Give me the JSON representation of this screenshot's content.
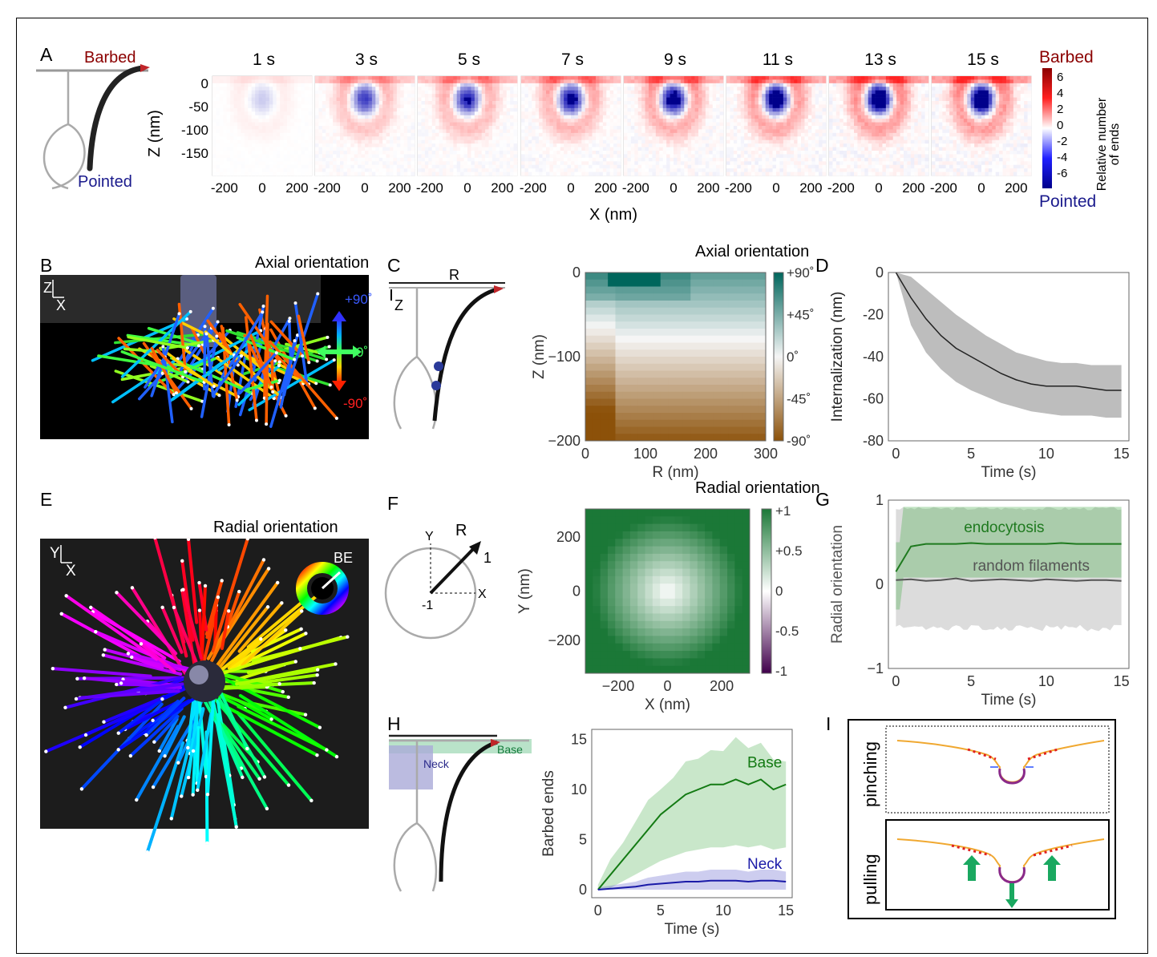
{
  "panel_labels": [
    "A",
    "B",
    "C",
    "D",
    "E",
    "F",
    "G",
    "H",
    "I"
  ],
  "panelA": {
    "schematic": {
      "barbed": "Barbed",
      "pointed": "Pointed"
    },
    "time_labels": [
      "1 s",
      "3 s",
      "5 s",
      "7 s",
      "9 s",
      "11 s",
      "13 s",
      "15 s"
    ],
    "ylabel": "Z (nm)",
    "yticks": [
      "0",
      "-50",
      "-100",
      "-150"
    ],
    "xticks": [
      "-200",
      "0",
      "200"
    ],
    "xlabel": "X (nm)",
    "colorbar": {
      "top": "Barbed",
      "bottom": "Pointed",
      "title": "Relative number of ends",
      "ticks": [
        "6",
        "4",
        "2",
        "0",
        "-2",
        "-4",
        "-6"
      ],
      "colors": {
        "max": "#8b0000",
        "mid": "#ffffff",
        "min": "#00008b"
      }
    }
  },
  "panelB": {
    "title": "Axial orientation",
    "axes": "Z X",
    "legend": [
      "+90˚",
      "0˚",
      "-90˚"
    ]
  },
  "panelC": {
    "schematic": {
      "R": "R",
      "Z": "Z"
    },
    "title": "Axial orientation",
    "xlabel": "R (nm)",
    "ylabel": "Z (nm)",
    "xticks": [
      "0",
      "100",
      "200",
      "300"
    ],
    "yticks": [
      "0",
      "−100",
      "−200"
    ],
    "colorbar_ticks": [
      "+90˚",
      "+45˚",
      "0˚",
      "-45˚",
      "-90˚"
    ],
    "colors": {
      "pos": "#00665c",
      "mid": "#f5f5f5",
      "neg": "#8c5109"
    }
  },
  "panelD": {
    "xlabel": "Time (s)",
    "ylabel": "Internalization (nm)",
    "xticks": [
      "0",
      "5",
      "10",
      "15"
    ],
    "yticks": [
      "0",
      "-20",
      "-40",
      "-60",
      "-80"
    ],
    "chart_data": {
      "type": "line",
      "x": [
        0,
        1,
        2,
        3,
        4,
        5,
        6,
        7,
        8,
        9,
        10,
        11,
        12,
        13,
        14,
        15
      ],
      "series": [
        {
          "values": [
            0,
            -12,
            -22,
            -30,
            -36,
            -40,
            -44,
            -48,
            -51,
            -53,
            -54,
            -54,
            -54,
            -55,
            -56,
            -56
          ]
        }
      ],
      "band_low": [
        0,
        -25,
        -38,
        -46,
        -52,
        -56,
        -59,
        -62,
        -64,
        -66,
        -67,
        -68,
        -68,
        -68,
        -69,
        -69
      ],
      "band_high": [
        0,
        -2,
        -8,
        -14,
        -20,
        -25,
        -30,
        -34,
        -38,
        -40,
        -42,
        -43,
        -43,
        -44,
        -44,
        -44
      ],
      "ylim": [
        -80,
        0
      ],
      "xlim": [
        0,
        15
      ]
    }
  },
  "panelE": {
    "title": "Radial orientation",
    "axes": "Y X",
    "legend": "BE"
  },
  "panelF": {
    "schematic": {
      "Y": "Y",
      "X": "X",
      "R": "R",
      "one": "1",
      "minus_one": "-1"
    },
    "title": "Radial orientation",
    "xlabel": "X (nm)",
    "ylabel": "Y (nm)",
    "xticks": [
      "−200",
      "0",
      "200"
    ],
    "yticks": [
      "200",
      "0",
      "−200"
    ],
    "colorbar_ticks": [
      "+1",
      "+0.5",
      "0",
      "-0.5",
      "-1"
    ],
    "colors": {
      "pos": "#1b7837",
      "mid": "#ffffff",
      "neg": "#40004b"
    }
  },
  "panelG": {
    "xlabel": "Time (s)",
    "ylabel": "Radial orientation",
    "xticks": [
      "0",
      "5",
      "10",
      "15"
    ],
    "yticks": [
      "1",
      "0",
      "−1"
    ],
    "chart_data": {
      "type": "line",
      "x": [
        0,
        1,
        2,
        3,
        4,
        5,
        6,
        7,
        8,
        9,
        10,
        11,
        12,
        13,
        14,
        15
      ],
      "series": [
        {
          "name": "endocytosis",
          "values": [
            0.15,
            0.45,
            0.48,
            0.48,
            0.48,
            0.49,
            0.48,
            0.48,
            0.48,
            0.48,
            0.48,
            0.49,
            0.48,
            0.48,
            0.48,
            0.48
          ]
        },
        {
          "name": "random filaments",
          "values": [
            0.05,
            0.06,
            0.04,
            0.05,
            0.07,
            0.04,
            0.05,
            0.06,
            0.05,
            0.04,
            0.06,
            0.05,
            0.04,
            0.05,
            0.05,
            0.04
          ]
        }
      ],
      "ylim": [
        -1,
        1
      ],
      "xlim": [
        0,
        15
      ]
    }
  },
  "panelH": {
    "schematic": {
      "neck": "Neck",
      "base": "Base"
    },
    "xlabel": "Time (s)",
    "ylabel": "Barbed ends",
    "xticks": [
      "0",
      "5",
      "10",
      "15"
    ],
    "yticks": [
      "15",
      "10",
      "5",
      "0"
    ],
    "chart_data": {
      "type": "line",
      "x": [
        0,
        1,
        2,
        3,
        4,
        5,
        6,
        7,
        8,
        9,
        10,
        11,
        12,
        13,
        14,
        15
      ],
      "series": [
        {
          "name": "Base",
          "values": [
            0,
            1.5,
            3,
            4.5,
            6,
            7.5,
            8.5,
            9.5,
            10,
            10.5,
            10.5,
            11,
            10.5,
            11,
            10,
            10.5
          ]
        },
        {
          "name": "Neck",
          "values": [
            0,
            0.1,
            0.2,
            0.3,
            0.5,
            0.6,
            0.7,
            0.8,
            0.8,
            0.9,
            0.9,
            0.9,
            0.8,
            0.9,
            0.9,
            0.8
          ]
        }
      ],
      "base_band": [
        [
          0,
          0.5
        ],
        [
          1,
          3
        ],
        [
          2,
          5
        ],
        [
          3,
          7
        ],
        [
          4,
          9
        ],
        [
          5,
          10
        ],
        [
          6,
          11.5
        ],
        [
          7,
          12.5
        ],
        [
          8,
          13
        ],
        [
          9,
          14
        ],
        [
          10,
          14
        ],
        [
          11,
          15
        ],
        [
          12,
          14
        ],
        [
          13,
          15
        ],
        [
          14,
          13
        ],
        [
          15,
          13
        ]
      ],
      "ylim": [
        0,
        15
      ],
      "xlim": [
        0,
        15
      ]
    }
  },
  "panelI": {
    "pinching": "pinching",
    "pulling": "pulling"
  }
}
